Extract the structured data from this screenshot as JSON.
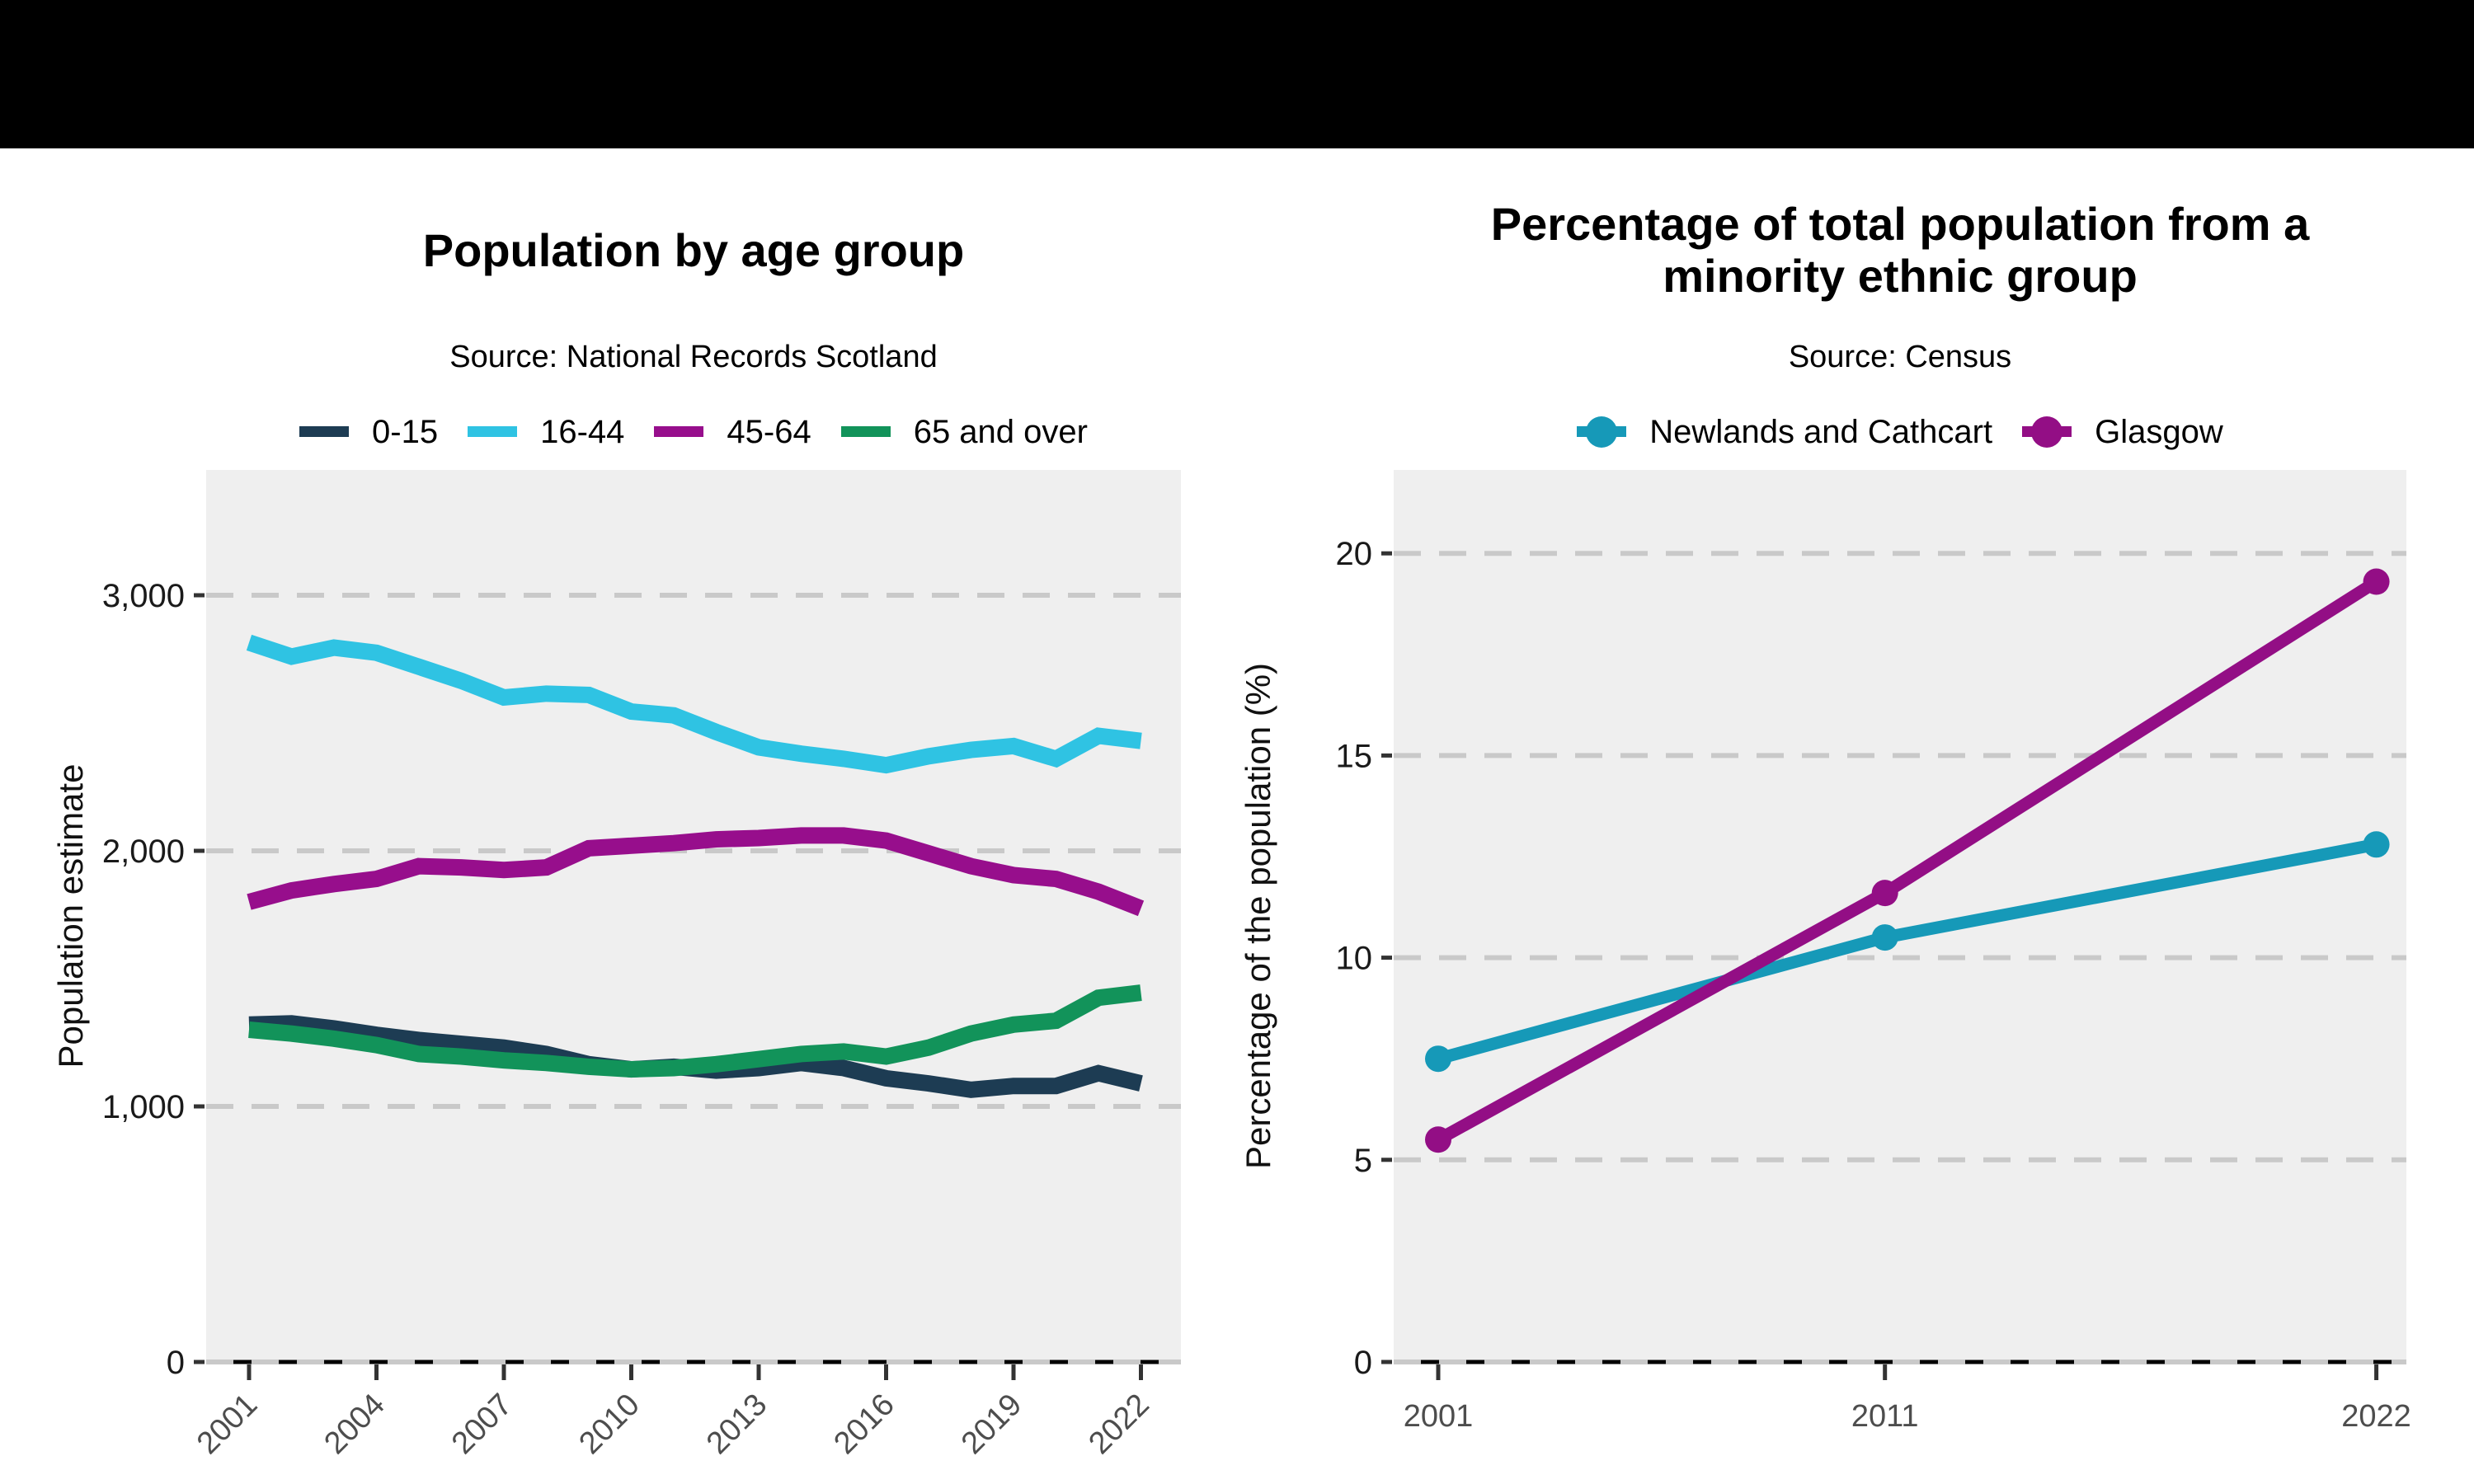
{
  "style": {
    "topbar_color": "#000000",
    "panel_background": "#efefef",
    "grid_color": "#c9c9c9",
    "axis_color": "#000000",
    "tick_color": "#333333",
    "y_tick_label_color": "#1a1a1a",
    "x_tick_label_color": "#4d4d4d"
  },
  "chart_data": [
    {
      "type": "line",
      "title": "Population by age group",
      "subtitle": "Source: National Records Scotland",
      "xlabel": "",
      "ylabel": "Population estimate",
      "legend_position": "top",
      "grid": "horizontal dashed",
      "ylim": [
        0,
        3490
      ],
      "y_ticks": [
        0,
        1000,
        2000,
        3000
      ],
      "y_tick_labels": [
        "0",
        "1,000",
        "2,000",
        "3,000"
      ],
      "x_ticks": [
        2001,
        2004,
        2007,
        2010,
        2013,
        2016,
        2019,
        2022
      ],
      "x_tick_rotation": 45,
      "x": [
        2001,
        2002,
        2003,
        2004,
        2005,
        2006,
        2007,
        2008,
        2009,
        2010,
        2011,
        2012,
        2013,
        2014,
        2015,
        2016,
        2017,
        2018,
        2019,
        2020,
        2021,
        2022
      ],
      "series": [
        {
          "name": "0-15",
          "color": "#1d3c53",
          "values": [
            1320,
            1325,
            1305,
            1280,
            1260,
            1245,
            1230,
            1205,
            1165,
            1145,
            1155,
            1140,
            1150,
            1170,
            1150,
            1110,
            1090,
            1065,
            1080,
            1080,
            1130,
            1090
          ]
        },
        {
          "name": "16-44",
          "color": "#2fc3e3",
          "values": [
            2815,
            2760,
            2795,
            2775,
            2720,
            2665,
            2600,
            2615,
            2610,
            2545,
            2530,
            2465,
            2405,
            2380,
            2360,
            2335,
            2370,
            2395,
            2410,
            2360,
            2450,
            2430
          ]
        },
        {
          "name": "45-64",
          "color": "#970e8c",
          "values": [
            1800,
            1845,
            1870,
            1890,
            1940,
            1935,
            1925,
            1935,
            2010,
            2020,
            2030,
            2045,
            2050,
            2060,
            2060,
            2040,
            1990,
            1940,
            1905,
            1890,
            1840,
            1775
          ]
        },
        {
          "name": "65 and over",
          "color": "#12935a",
          "values": [
            1300,
            1285,
            1265,
            1240,
            1205,
            1195,
            1180,
            1170,
            1155,
            1145,
            1150,
            1165,
            1185,
            1205,
            1215,
            1195,
            1230,
            1285,
            1320,
            1335,
            1425,
            1445
          ]
        }
      ]
    },
    {
      "type": "line",
      "title": "Percentage of total population from a\nminority ethnic group",
      "subtitle": "Source: Census",
      "xlabel": "",
      "ylabel": "Percentage of the population (%)",
      "legend_position": "top",
      "grid": "horizontal dashed",
      "markers": true,
      "ylim": [
        0,
        22
      ],
      "y_ticks": [
        0,
        5,
        10,
        15,
        20
      ],
      "y_tick_labels": [
        "0",
        "5",
        "10",
        "15",
        "20"
      ],
      "x_ticks": [
        2001,
        2011,
        2022
      ],
      "x_tick_rotation": 0,
      "x": [
        2001,
        2011,
        2022
      ],
      "series": [
        {
          "name": "Newlands and Cathcart",
          "color": "#1699b8",
          "values": [
            7.5,
            10.5,
            12.8
          ]
        },
        {
          "name": "Glasgow",
          "color": "#930e85",
          "values": [
            5.5,
            11.6,
            19.3
          ]
        }
      ]
    }
  ]
}
